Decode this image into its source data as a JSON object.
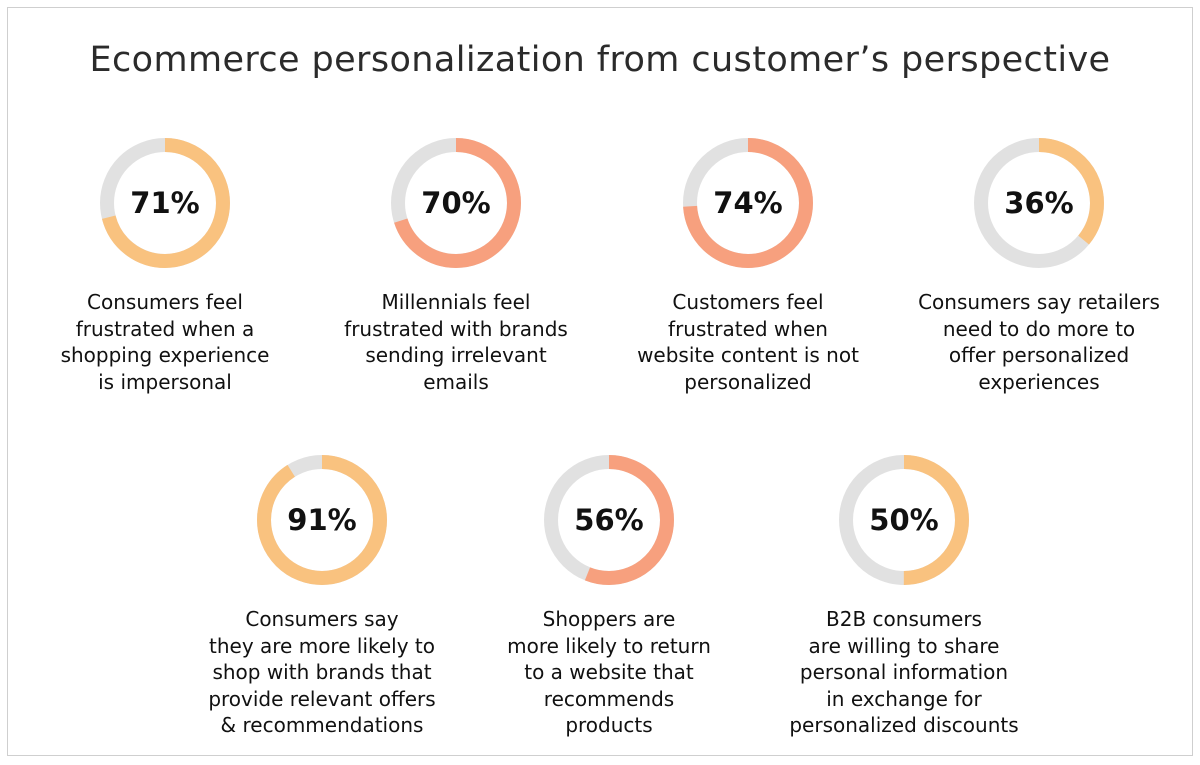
{
  "title": "Ecommerce personalization from customer’s perspective",
  "colors": {
    "track": "#e1e1e1",
    "peach": "#f9c27f",
    "salmon": "#f7a07e"
  },
  "chart_data": [
    {
      "type": "pie",
      "value": 71,
      "label": "71%",
      "color": "peach",
      "text": "Consumers feel\nfrustrated when a\nshopping experience\nis impersonal"
    },
    {
      "type": "pie",
      "value": 70,
      "label": "70%",
      "color": "salmon",
      "text": "Millennials feel\nfrustrated with brands\nsending irrelevant\nemails"
    },
    {
      "type": "pie",
      "value": 74,
      "label": "74%",
      "color": "salmon",
      "text": "Customers feel\nfrustrated when\nwebsite content is not\npersonalized"
    },
    {
      "type": "pie",
      "value": 36,
      "label": "36%",
      "color": "peach",
      "text": "Consumers say retailers\nneed to do more to\noffer personalized\nexperiences"
    },
    {
      "type": "pie",
      "value": 91,
      "label": "91%",
      "color": "peach",
      "text": "Consumers say\nthey are more likely to\nshop with brands that\nprovide relevant offers\n& recommendations"
    },
    {
      "type": "pie",
      "value": 56,
      "label": "56%",
      "color": "salmon",
      "text": "Shoppers are\nmore likely to return\nto a website that\nrecommends\nproducts"
    },
    {
      "type": "pie",
      "value": 50,
      "label": "50%",
      "color": "peach",
      "text": "B2B consumers\nare willing to share\npersonal information\nin exchange for\npersonalized discounts"
    }
  ]
}
